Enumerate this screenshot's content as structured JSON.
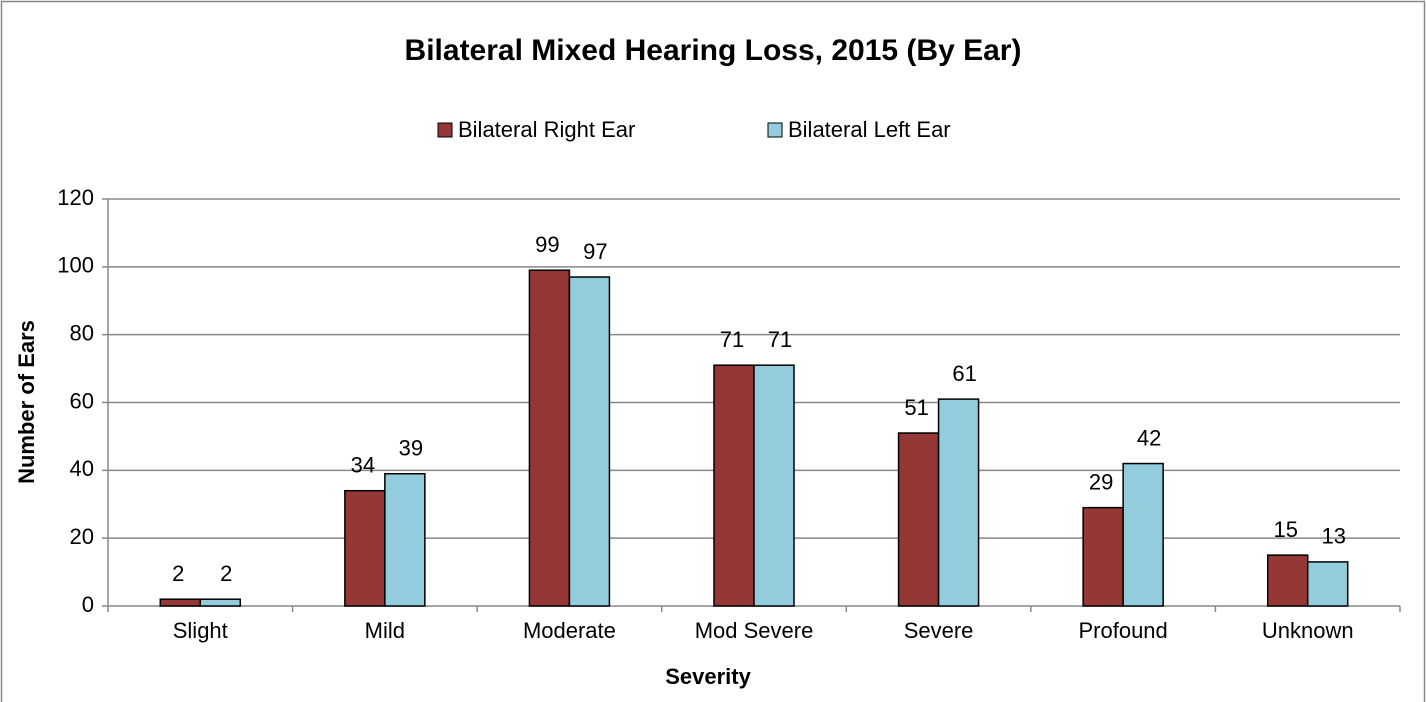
{
  "chart_data": {
    "type": "bar",
    "title": "Bilateral Mixed Hearing Loss, 2015 (By Ear)",
    "x_label": "Severity",
    "y_label": "Number of Ears",
    "categories": [
      "Slight",
      "Mild",
      "Moderate",
      "Mod Severe",
      "Severe",
      "Profound",
      "Unknown"
    ],
    "series": [
      {
        "name": "Bilateral Right Ear",
        "color": "#953735",
        "values": [
          2,
          34,
          99,
          71,
          51,
          29,
          15
        ]
      },
      {
        "name": "Bilateral Left Ear",
        "color": "#93cddd",
        "values": [
          2,
          39,
          97,
          71,
          61,
          42,
          13
        ]
      }
    ],
    "ylim": [
      0,
      120
    ],
    "yticks": [
      0,
      20,
      40,
      60,
      80,
      100,
      120
    ],
    "grid": true,
    "legend": "top",
    "data_labels": true
  }
}
